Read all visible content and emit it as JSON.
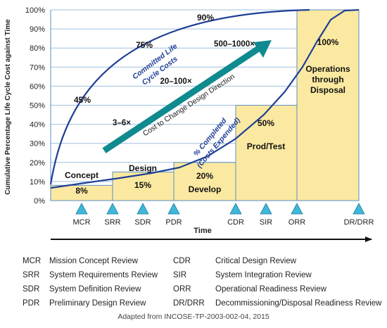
{
  "chart_data": {
    "type": "bar",
    "ylabel": "Cumulative Percentage Life Cycle Cost against Time",
    "xlabel": "Time",
    "ylim": [
      0,
      100
    ],
    "yticks": [
      "0%",
      "10%",
      "20%",
      "30%",
      "40%",
      "50%",
      "60%",
      "70%",
      "80%",
      "90%",
      "100%"
    ],
    "phases": [
      {
        "name": "Concept",
        "value": 8,
        "label": "8%"
      },
      {
        "name": "Design",
        "value": 15,
        "label": "15%"
      },
      {
        "name": "Develop",
        "value": 20,
        "label": "20%"
      },
      {
        "name": "Prod/Test",
        "value": 50,
        "label": "50%"
      },
      {
        "name": "Operations through Disposal",
        "value": 100,
        "label": "100%"
      }
    ],
    "committed_curve": {
      "name": "Committed Life Cycle Costs",
      "annotations": [
        "45%",
        "75%",
        "90%"
      ]
    },
    "expended_curve": {
      "name": "% Completed (Costs Expended)"
    },
    "arrow": {
      "name": "Cost to Change Design Direction",
      "multipliers": [
        "3–6×",
        "20–100×",
        "500–1000×"
      ]
    },
    "milestones": [
      "MCR",
      "SRR",
      "SDR",
      "PDR",
      "CDR",
      "SIR",
      "ORR",
      "DR/DRR"
    ],
    "colors": {
      "bar_fill": "#fbe9a1",
      "bar_stroke": "#5b8ec4",
      "curve": "#1f3f95",
      "arrow": "#0f8a8f",
      "milestone": "#3fb7d8"
    }
  },
  "legend": [
    {
      "abbr": "MCR",
      "text": "Mission Concept Review"
    },
    {
      "abbr": "SRR",
      "text": "System Requirements Review"
    },
    {
      "abbr": "SDR",
      "text": "System Definition Review"
    },
    {
      "abbr": "PDR",
      "text": "Preliminary Design Review"
    },
    {
      "abbr": "CDR",
      "text": "Critical Design Review"
    },
    {
      "abbr": "SIR",
      "text": "System Integration Review"
    },
    {
      "abbr": "ORR",
      "text": "Operational Readiness Review"
    },
    {
      "abbr": "DR/DRR",
      "text": "Decommissioning/Disposal Readiness Review"
    }
  ],
  "source": "Adapted from INCOSE-TP-2003-002-04, 2015"
}
